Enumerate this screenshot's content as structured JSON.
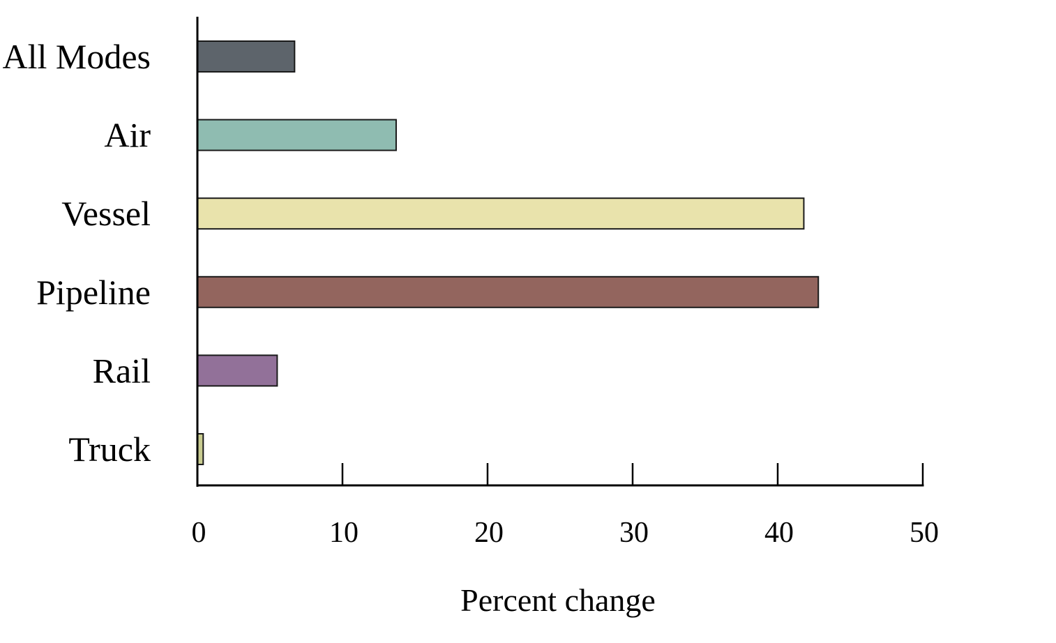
{
  "chart_data": {
    "type": "bar",
    "orientation": "horizontal",
    "title": "",
    "xlabel": "Percent change",
    "ylabel": "",
    "categories": [
      "All Modes",
      "Air",
      "Vessel",
      "Pipeline",
      "Rail",
      "Truck"
    ],
    "values": [
      6.7,
      13.7,
      41.8,
      42.8,
      5.5,
      0.4
    ],
    "colors": [
      "#5d646b",
      "#8fbcb1",
      "#e9e3ac",
      "#93655e",
      "#927199",
      "#c9cc91"
    ],
    "xlim": [
      0,
      50
    ],
    "xticks": [
      "0",
      "10",
      "20",
      "30",
      "40",
      "50"
    ],
    "grid": false,
    "legend": "none"
  }
}
